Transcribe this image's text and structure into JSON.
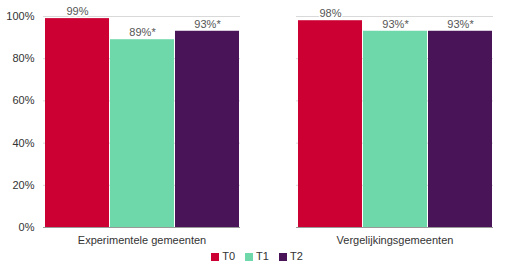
{
  "chart_data": {
    "type": "bar",
    "categories": [
      "Experimentele gemeenten",
      "Vergelijkingsgemeenten"
    ],
    "series": [
      {
        "name": "T0",
        "color": "#cc0033",
        "values": [
          99,
          98
        ],
        "value_labels": [
          "99%",
          "98%"
        ]
      },
      {
        "name": "T1",
        "color": "#6ed8aa",
        "values": [
          89,
          93
        ],
        "value_labels": [
          "89%*",
          "93%*"
        ]
      },
      {
        "name": "T2",
        "color": "#4a1458",
        "values": [
          93,
          93
        ],
        "value_labels": [
          "93%*",
          "93%*"
        ]
      }
    ],
    "ylim": [
      0,
      100
    ],
    "yticks": [
      {
        "value": 0,
        "label": "0%"
      },
      {
        "value": 20,
        "label": "20%"
      },
      {
        "value": 40,
        "label": "40%"
      },
      {
        "value": 60,
        "label": "60%"
      },
      {
        "value": 80,
        "label": "80%"
      },
      {
        "value": 100,
        "label": "100%"
      }
    ],
    "grid": true,
    "data_labels": true,
    "legend": "bottom"
  }
}
